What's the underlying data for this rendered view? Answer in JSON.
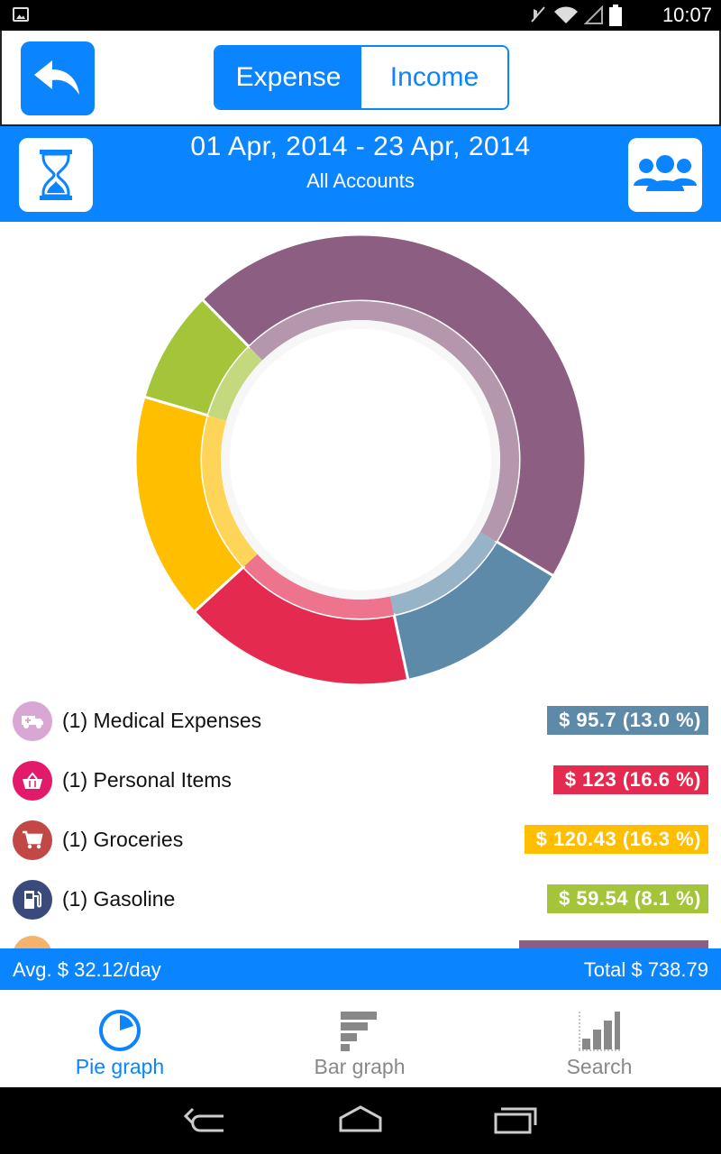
{
  "status_bar": {
    "time": "10:07"
  },
  "toolbar": {
    "back_icon": "back-arrow-icon",
    "segments": [
      {
        "label": "Expense",
        "active": true
      },
      {
        "label": "Income",
        "active": false
      }
    ]
  },
  "date_bar": {
    "range": "01 Apr, 2014 - 23 Apr, 2014",
    "accounts": "All Accounts",
    "left_icon": "hourglass-icon",
    "right_icon": "people-icon"
  },
  "chart_data": {
    "type": "pie",
    "series": [
      {
        "name": "Medical Expenses",
        "value": 95.7,
        "percent": 13.0,
        "color": "#5e8aaa"
      },
      {
        "name": "Personal Items",
        "value": 123,
        "percent": 16.6,
        "color": "#e52a50"
      },
      {
        "name": "Groceries",
        "value": 120.43,
        "percent": 16.3,
        "color": "#ffbe00"
      },
      {
        "name": "Gasoline",
        "value": 59.54,
        "percent": 8.1,
        "color": "#a4c439"
      },
      {
        "name": "",
        "value": null,
        "percent": 46.0,
        "color": "#8c5e81"
      }
    ]
  },
  "legend": {
    "items": [
      {
        "label": "(1) Medical Expenses",
        "value": "$ 95.7 (13.0 %)",
        "color": "#5e8aaa",
        "icon_color": "#d9a7d3",
        "icon": "ambulance-icon"
      },
      {
        "label": "(1) Personal Items",
        "value": "$ 123 (16.6 %)",
        "color": "#e52a50",
        "icon_color": "#e3196b",
        "icon": "basket-icon"
      },
      {
        "label": "(1) Groceries",
        "value": "$ 120.43 (16.3 %)",
        "color": "#ffbe00",
        "icon_color": "#c24848",
        "icon": "cart-icon"
      },
      {
        "label": "(1) Gasoline",
        "value": "$ 59.54 (8.1 %)",
        "color": "#a4c439",
        "icon_color": "#3a4a7a",
        "icon": "gas-pump-icon"
      }
    ]
  },
  "summary": {
    "avg": "Avg. $ 32.12/day",
    "total": "Total $ 738.79"
  },
  "tabs": [
    {
      "label": "Pie graph",
      "active": true,
      "color": "#0a84ff",
      "icon": "pie-chart-icon"
    },
    {
      "label": "Bar graph",
      "active": false,
      "color": "#888888",
      "icon": "bar-chart-icon"
    },
    {
      "label": "Search",
      "active": false,
      "color": "#888888",
      "icon": "column-chart-icon"
    }
  ],
  "nav_bar": {
    "buttons": [
      "back-nav-icon",
      "home-nav-icon",
      "recents-nav-icon"
    ]
  }
}
